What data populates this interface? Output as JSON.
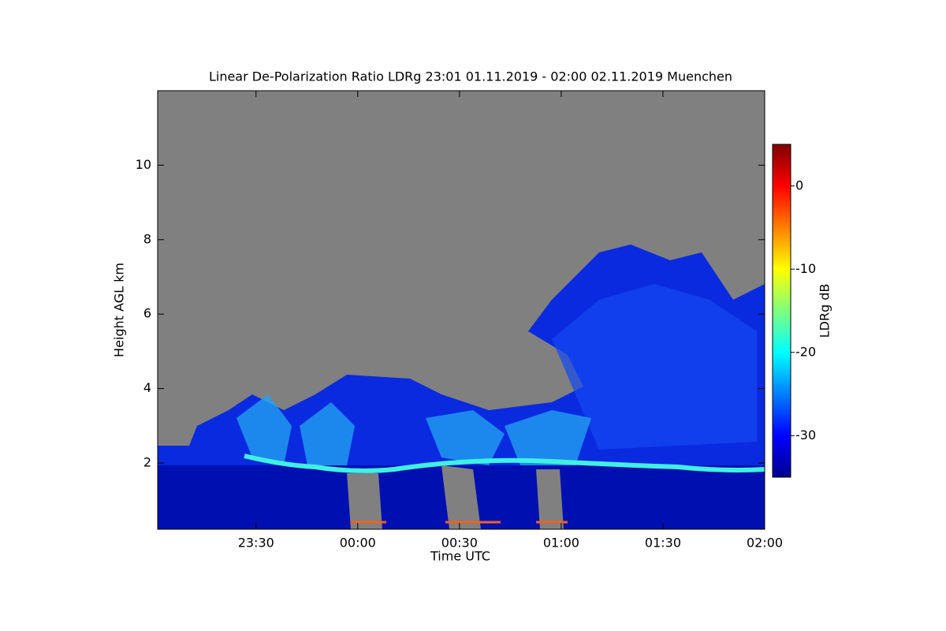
{
  "chart_data": {
    "type": "heatmap",
    "title": "Linear De-Polarization Ratio LDRg   23:01 01.11.2019 - 02:00 02.11.2019 Muenchen",
    "x_label": "Time UTC",
    "y_label": "Height AGL km",
    "colorbar_label": "LDRg dB",
    "xlim": [
      1381,
      1560
    ],
    "xticks": [
      {
        "value": 1410,
        "label": "23:30"
      },
      {
        "value": 1440,
        "label": "00:00"
      },
      {
        "value": 1470,
        "label": "00:30"
      },
      {
        "value": 1500,
        "label": "01:00"
      },
      {
        "value": 1530,
        "label": "01:30"
      },
      {
        "value": 1560,
        "label": "02:00"
      }
    ],
    "ylim": [
      0.22,
      12
    ],
    "yticks": [
      2,
      4,
      6,
      8,
      10
    ],
    "zlim": [
      -35,
      5
    ],
    "zticks": [
      0,
      -10,
      -20,
      -30
    ],
    "colormap": "jet",
    "background": "#808080"
  }
}
